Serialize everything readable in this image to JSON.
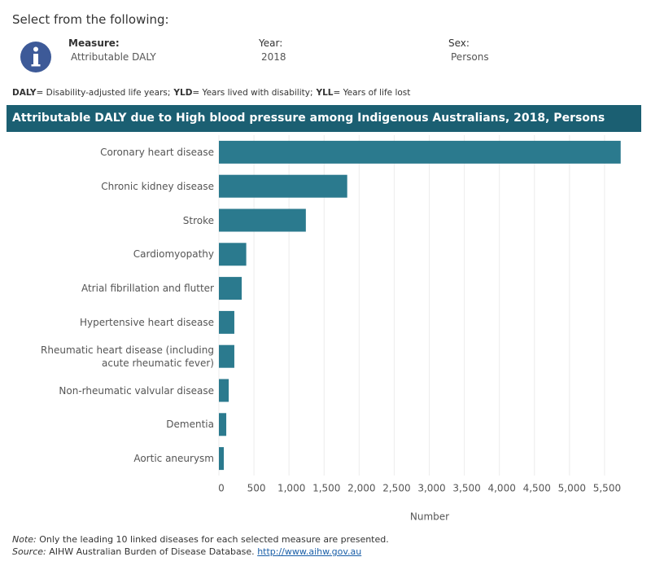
{
  "header": {
    "prompt": "Select from the following:",
    "filters": [
      {
        "label": "Measure:",
        "value": "Attributable DALY"
      },
      {
        "label": "Year:",
        "value": "2018"
      },
      {
        "label": "Sex:",
        "value": "Persons"
      }
    ]
  },
  "abbreviations": [
    {
      "term": "DALY",
      "definition": "= Disability-adjusted life years;"
    },
    {
      "term": "YLD",
      "definition": "= Years lived with disability;"
    },
    {
      "term": "YLL",
      "definition": "= Years of life lost"
    }
  ],
  "chart_data": {
    "type": "bar",
    "orientation": "horizontal",
    "title": "Attributable DALY due to High blood pressure among Indigenous Australians, 2018, Persons",
    "categories": [
      "Coronary heart disease",
      "Chronic kidney disease",
      "Stroke",
      "Cardiomyopathy",
      "Atrial fibrillation and flutter",
      "Hypertensive heart disease",
      "Rheumatic heart disease (including acute rheumatic fever)",
      "Non-rheumatic valvular disease",
      "Dementia",
      "Aortic aneurysm"
    ],
    "values": [
      5730,
      1830,
      1240,
      390,
      325,
      220,
      220,
      140,
      105,
      70
    ],
    "color": "#2b7a8e",
    "xlim": [
      0,
      6000
    ],
    "xticks": [
      0,
      500,
      {
        "value": 1000,
        "label": "1,000"
      },
      {
        "value": 1500,
        "label": "1,500"
      },
      {
        "value": 2000,
        "label": "2,000"
      },
      {
        "value": 2500,
        "label": "2,500"
      },
      {
        "value": 3000,
        "label": "3,000"
      },
      {
        "value": 3500,
        "label": "3,500"
      },
      {
        "value": 4000,
        "label": "4,000"
      },
      {
        "value": 4500,
        "label": "4,500"
      },
      {
        "value": 5000,
        "label": "5,000"
      },
      {
        "value": 5500,
        "label": "5,500"
      }
    ],
    "xlabel": "Number",
    "grid": true
  },
  "footer": {
    "note_label": "Note:",
    "note": "Only the leading 10 linked diseases for each selected measure are presented.",
    "source_label": "Source:",
    "source": "AIHW Australian Burden of Disease Database.",
    "source_url": "http://www.aihw.gov.au"
  }
}
